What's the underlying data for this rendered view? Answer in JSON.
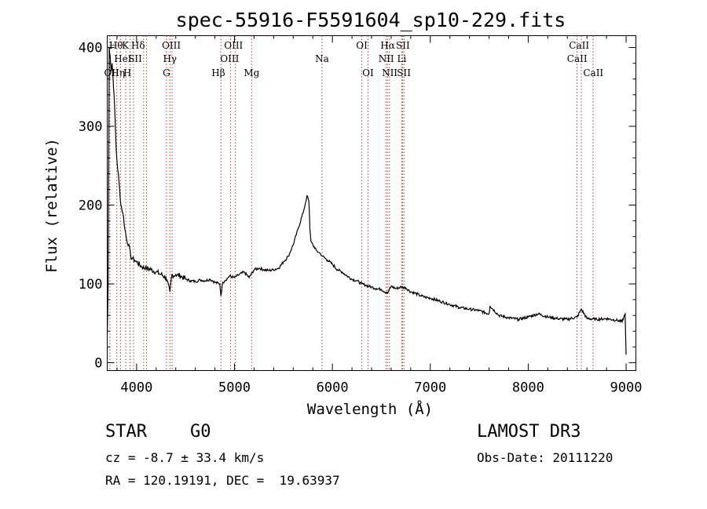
{
  "chart_data": {
    "type": "line",
    "title": "spec-55916-F5591604_sp10-229.fits",
    "xlabel": "Wavelength (Å)",
    "ylabel": "Flux (relative)",
    "xlim": [
      3700,
      9100
    ],
    "ylim": [
      -10,
      415
    ],
    "xticks": [
      4000,
      5000,
      6000,
      7000,
      8000,
      9000
    ],
    "yticks": [
      0,
      100,
      200,
      300,
      400
    ],
    "series": [
      {
        "name": "spectrum",
        "x": [
          3700,
          3710,
          3720,
          3730,
          3740,
          3750,
          3760,
          3770,
          3780,
          3790,
          3800,
          3820,
          3840,
          3860,
          3880,
          3900,
          3920,
          3940,
          3960,
          3980,
          4000,
          4050,
          4100,
          4150,
          4200,
          4250,
          4300,
          4340,
          4360,
          4380,
          4400,
          4450,
          4500,
          4550,
          4600,
          4650,
          4700,
          4750,
          4800,
          4850,
          4861,
          4880,
          4900,
          4950,
          5000,
          5050,
          5100,
          5150,
          5200,
          5250,
          5300,
          5350,
          5400,
          5450,
          5500,
          5550,
          5600,
          5650,
          5700,
          5720,
          5740,
          5760,
          5770,
          5780,
          5800,
          5820,
          5840,
          5860,
          5880,
          5900,
          5950,
          6000,
          6050,
          6100,
          6150,
          6200,
          6250,
          6300,
          6350,
          6400,
          6450,
          6500,
          6563,
          6600,
          6650,
          6700,
          6750,
          6800,
          6850,
          6900,
          6950,
          7000,
          7100,
          7200,
          7300,
          7400,
          7500,
          7600,
          7610,
          7700,
          7800,
          7900,
          8000,
          8100,
          8200,
          8300,
          8400,
          8500,
          8542,
          8600,
          8700,
          8800,
          8900,
          8960,
          8990,
          9000
        ],
        "values": [
          35,
          100,
          400,
          390,
          370,
          380,
          360,
          340,
          310,
          275,
          255,
          230,
          200,
          190,
          170,
          155,
          150,
          135,
          132,
          130,
          128,
          122,
          120,
          118,
          115,
          112,
          108,
          90,
          112,
          110,
          112,
          110,
          106,
          104,
          103,
          105,
          104,
          106,
          102,
          100,
          85,
          102,
          104,
          110,
          108,
          112,
          115,
          108,
          118,
          120,
          118,
          117,
          118,
          120,
          128,
          135,
          150,
          170,
          190,
          200,
          212,
          205,
          170,
          155,
          150,
          145,
          142,
          140,
          138,
          135,
          130,
          125,
          118,
          115,
          110,
          106,
          104,
          100,
          98,
          96,
          94,
          93,
          88,
          97,
          94,
          96,
          95,
          90,
          88,
          85,
          83,
          82,
          78,
          74,
          70,
          68,
          66,
          62,
          72,
          60,
          57,
          55,
          58,
          62,
          58,
          56,
          55,
          58,
          68,
          56,
          55,
          56,
          54,
          52,
          62,
          10
        ]
      }
    ],
    "lines": [
      {
        "name": "OII",
        "wavelength": 3727
      },
      {
        "name": "Hθ",
        "wavelength": 3798
      },
      {
        "name": "Hη",
        "wavelength": 3835
      },
      {
        "name": "HeI",
        "wavelength": 3889
      },
      {
        "name": "K",
        "wavelength": 3934
      },
      {
        "name": "H",
        "wavelength": 3969
      },
      {
        "name": "SII",
        "wavelength": 4072
      },
      {
        "name": "Hδ",
        "wavelength": 4102
      },
      {
        "name": "G",
        "wavelength": 4305
      },
      {
        "name": "Hγ",
        "wavelength": 4340
      },
      {
        "name": "OIII",
        "wavelength": 4363
      },
      {
        "name": "Hβ",
        "wavelength": 4861
      },
      {
        "name": "OIII",
        "wavelength": 4959
      },
      {
        "name": "OIII",
        "wavelength": 5007
      },
      {
        "name": "Mg",
        "wavelength": 5175
      },
      {
        "name": "Na",
        "wavelength": 5894
      },
      {
        "name": "OI",
        "wavelength": 6300
      },
      {
        "name": "OI",
        "wavelength": 6364
      },
      {
        "name": "NII",
        "wavelength": 6548
      },
      {
        "name": "Hα",
        "wavelength": 6563
      },
      {
        "name": "NII",
        "wavelength": 6583
      },
      {
        "name": "Li",
        "wavelength": 6708
      },
      {
        "name": "SII",
        "wavelength": 6716
      },
      {
        "name": "SII",
        "wavelength": 6731
      },
      {
        "name": "CaII",
        "wavelength": 8498
      },
      {
        "name": "CaII",
        "wavelength": 8542
      },
      {
        "name": "CaII",
        "wavelength": 8662
      }
    ],
    "labels": [
      {
        "text": "OII",
        "row": 2,
        "wavelength": 3745
      },
      {
        "text": "Hθ",
        "row": 0,
        "wavelength": 3790
      },
      {
        "text": "Hη",
        "row": 2,
        "wavelength": 3810
      },
      {
        "text": "HeI",
        "row": 1,
        "wavelength": 3860
      },
      {
        "text": "K",
        "row": 0,
        "wavelength": 3885
      },
      {
        "text": "H",
        "row": 2,
        "wavelength": 3905
      },
      {
        "text": "SII",
        "row": 1,
        "wavelength": 3985
      },
      {
        "text": "Hδ",
        "row": 0,
        "wavelength": 4015
      },
      {
        "text": "OIII",
        "row": 0,
        "wavelength": 4355
      },
      {
        "text": "Hγ",
        "row": 1,
        "wavelength": 4340
      },
      {
        "text": "G",
        "row": 2,
        "wavelength": 4305
      },
      {
        "text": "Hβ",
        "row": 2,
        "wavelength": 4835
      },
      {
        "text": "OIII",
        "row": 0,
        "wavelength": 4990
      },
      {
        "text": "OIII",
        "row": 1,
        "wavelength": 4950
      },
      {
        "text": "Mg",
        "row": 2,
        "wavelength": 5175
      },
      {
        "text": "Na",
        "row": 1,
        "wavelength": 5894
      },
      {
        "text": "OI",
        "row": 0,
        "wavelength": 6300
      },
      {
        "text": "OI",
        "row": 2,
        "wavelength": 6364
      },
      {
        "text": "Hα",
        "row": 0,
        "wavelength": 6565
      },
      {
        "text": "SII",
        "row": 0,
        "wavelength": 6720
      },
      {
        "text": "NII",
        "row": 1,
        "wavelength": 6550
      },
      {
        "text": "Li",
        "row": 1,
        "wavelength": 6708
      },
      {
        "text": "NII",
        "row": 2,
        "wavelength": 6585
      },
      {
        "text": "SII",
        "row": 2,
        "wavelength": 6730
      },
      {
        "text": "CaII",
        "row": 0,
        "wavelength": 8520
      },
      {
        "text": "CaII",
        "row": 1,
        "wavelength": 8500
      },
      {
        "text": "CaII",
        "row": 2,
        "wavelength": 8665
      }
    ],
    "colors": {
      "line": "#000000",
      "marker": "#c0392b"
    }
  },
  "info": {
    "class": "STAR",
    "subclass": "G0",
    "survey": "LAMOST DR3",
    "cz": "cz = -8.7 ± 33.4 km/s",
    "obs_date": "Obs-Date: 20111220",
    "coords": "RA = 120.19191, DEC =  19.63937"
  }
}
